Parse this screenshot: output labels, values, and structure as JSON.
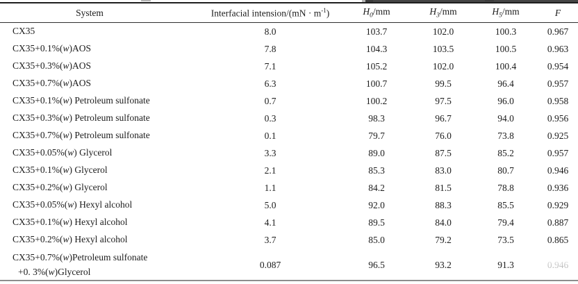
{
  "table": {
    "header": {
      "system": "System",
      "ift": {
        "prefix": "Interfacial intension/(mN · m",
        "sup": "-1",
        "suffix": ")"
      },
      "h0": {
        "base": "H",
        "sub": "0",
        "unit": "/mm"
      },
      "h3": {
        "base": "H",
        "sub": "3",
        "unit": "/mm"
      },
      "h5": {
        "base": "H",
        "sub": "5",
        "unit": "/mm"
      },
      "f": "F"
    },
    "rows": [
      {
        "system": "CX35",
        "values": [
          "8.0",
          "103.7",
          "102.0",
          "100.3",
          "0.967"
        ]
      },
      {
        "system": "CX35+0.1%(w)AOS",
        "values": [
          "7.8",
          "104.3",
          "103.5",
          "100.5",
          "0.963"
        ]
      },
      {
        "system": "CX35+0.3%(w)AOS",
        "values": [
          "7.1",
          "105.2",
          "102.0",
          "100.4",
          "0.954"
        ]
      },
      {
        "system": "CX35+0.7%(w)AOS",
        "values": [
          "6.3",
          "100.7",
          "99.5",
          "96.4",
          "0.957"
        ]
      },
      {
        "system": "CX35+0.1%(w) Petroleum sulfonate",
        "values": [
          "0.7",
          "100.2",
          "97.5",
          "96.0",
          "0.958"
        ]
      },
      {
        "system": "CX35+0.3%(w) Petroleum sulfonate",
        "values": [
          "0.3",
          "98.3",
          "96.7",
          "94.0",
          "0.956"
        ]
      },
      {
        "system": "CX35+0.7%(w) Petroleum sulfonate",
        "values": [
          "0.1",
          "79.7",
          "76.0",
          "73.8",
          "0.925"
        ]
      },
      {
        "system": "CX35+0.05%(w) Glycerol",
        "values": [
          "3.3",
          "89.0",
          "87.5",
          "85.2",
          "0.957"
        ]
      },
      {
        "system": "CX35+0.1%(w) Glycerol",
        "values": [
          "2.1",
          "85.3",
          "83.0",
          "80.7",
          "0.946"
        ]
      },
      {
        "system": "CX35+0.2%(w) Glycerol",
        "values": [
          "1.1",
          "84.2",
          "81.5",
          "78.8",
          "0.936"
        ]
      },
      {
        "system": "CX35+0.05%(w) Hexyl alcohol",
        "values": [
          "5.0",
          "92.0",
          "88.3",
          "85.5",
          "0.929"
        ]
      },
      {
        "system": "CX35+0.1%(w) Hexyl alcohol",
        "values": [
          "4.1",
          "89.5",
          "84.0",
          "79.4",
          "0.887"
        ]
      },
      {
        "system": "CX35+0.2%(w) Hexyl alcohol",
        "values": [
          "3.7",
          "85.0",
          "79.2",
          "73.5",
          "0.865"
        ]
      },
      {
        "system_lines": [
          "CX35+0.7%(w)Petroleum sulfonate",
          "+0. 3%(w)Glycerol"
        ],
        "values": [
          "0.087",
          "96.5",
          "93.2",
          "91.3",
          "0.946"
        ],
        "f_degraded": true
      }
    ]
  }
}
